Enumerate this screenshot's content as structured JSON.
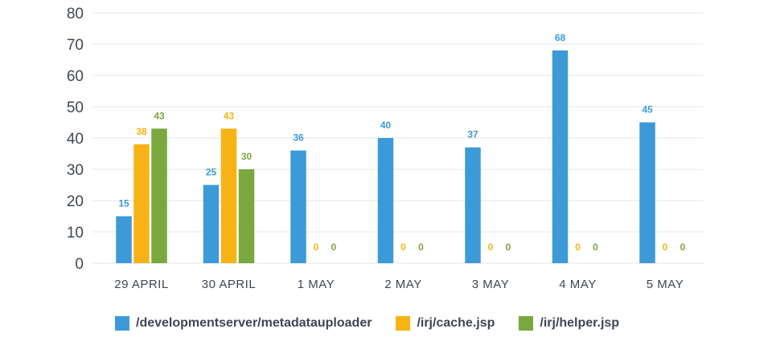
{
  "chart_data": {
    "type": "bar",
    "categories": [
      "29 APRIL",
      "30 APRIL",
      "1 MAY",
      "2 MAY",
      "3 MAY",
      "4 MAY",
      "5 MAY"
    ],
    "series": [
      {
        "name": "/developmentserver/metadatauploader",
        "color": "#3d9ad8",
        "values": [
          15,
          25,
          36,
          40,
          37,
          68,
          45
        ]
      },
      {
        "name": "/irj/cache.jsp",
        "color": "#f7b316",
        "values": [
          38,
          43,
          0,
          0,
          0,
          0,
          0
        ]
      },
      {
        "name": "/irj/helper.jsp",
        "color": "#7aa83e",
        "values": [
          43,
          30,
          0,
          0,
          0,
          0,
          0
        ]
      }
    ],
    "ylim": [
      0,
      80
    ],
    "yticks": [
      0,
      10,
      20,
      30,
      40,
      50,
      60,
      70,
      80
    ],
    "grid": true,
    "legend_position": "bottom",
    "data_labels": true
  }
}
